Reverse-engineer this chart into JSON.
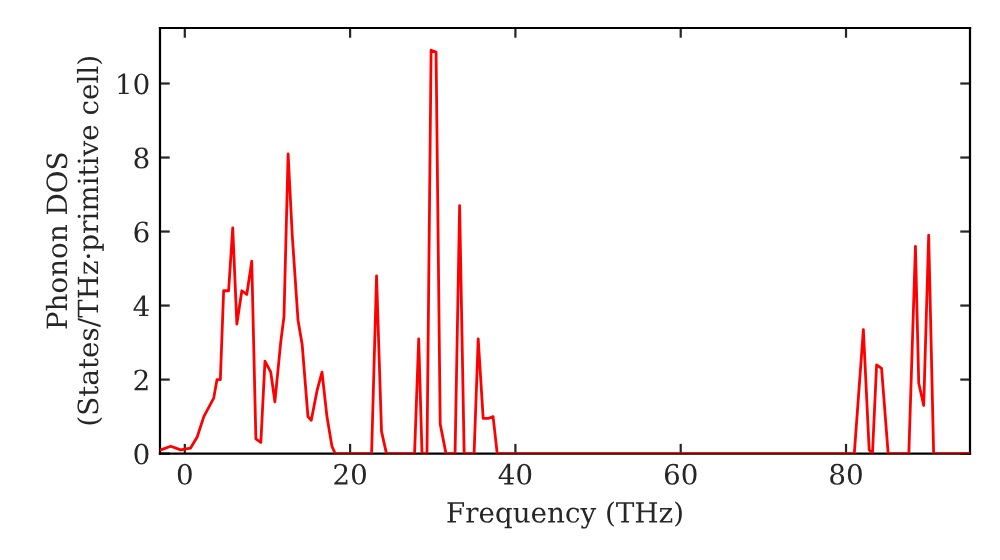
{
  "chart_data": {
    "type": "line",
    "xlabel": "Frequency (THz)",
    "ylabel": "Phonon DOS\n(States/THz·primitive cell)",
    "xlim": [
      -3,
      95
    ],
    "ylim": [
      0,
      11.5
    ],
    "xticks": [
      0,
      20,
      40,
      60,
      80
    ],
    "yticks": [
      0,
      2,
      4,
      6,
      8,
      10
    ],
    "grid": false,
    "legend": false,
    "series": [
      {
        "color": "#ff0000",
        "x": [
          -2.9,
          -1.7,
          -0.5,
          0.7,
          1.5,
          2.3,
          3.5,
          3.9,
          4.3,
          4.7,
          5.3,
          5.8,
          6.3,
          6.9,
          7.5,
          8.1,
          8.6,
          9.2,
          9.7,
          10.4,
          10.9,
          11.6,
          12.0,
          12.5,
          13.0,
          13.7,
          14.2,
          14.9,
          15.3,
          16.0,
          16.6,
          17.2,
          17.8,
          18.2,
          22.6,
          23.2,
          23.8,
          24.4,
          27.8,
          28.3,
          28.7,
          29.3,
          29.8,
          30.4,
          30.9,
          31.6,
          32.7,
          33.25,
          33.8,
          35.0,
          35.5,
          36.1,
          36.7,
          37.3,
          37.8,
          81.0,
          82.1,
          82.8,
          83.2,
          83.7,
          84.3,
          85.1,
          87.6,
          88.4,
          88.8,
          89.4,
          90.0,
          90.6,
          95
        ],
        "values": [
          0.1,
          0.2,
          0.1,
          0.15,
          0.45,
          1.0,
          1.5,
          2.0,
          2.0,
          4.4,
          4.4,
          6.1,
          3.5,
          4.4,
          4.3,
          5.2,
          0.4,
          0.3,
          2.5,
          2.2,
          1.4,
          3.0,
          3.7,
          8.1,
          5.9,
          3.6,
          2.95,
          1.0,
          0.9,
          1.7,
          2.2,
          1.0,
          0.2,
          0,
          0,
          4.8,
          0.6,
          0,
          0,
          3.1,
          0,
          0,
          10.9,
          10.85,
          0.8,
          0,
          0,
          6.7,
          0,
          0,
          3.1,
          0.95,
          0.95,
          1.0,
          0,
          0,
          3.35,
          0.1,
          0,
          2.4,
          2.3,
          0,
          0,
          5.6,
          1.9,
          1.3,
          5.9,
          0,
          0
        ]
      }
    ]
  }
}
